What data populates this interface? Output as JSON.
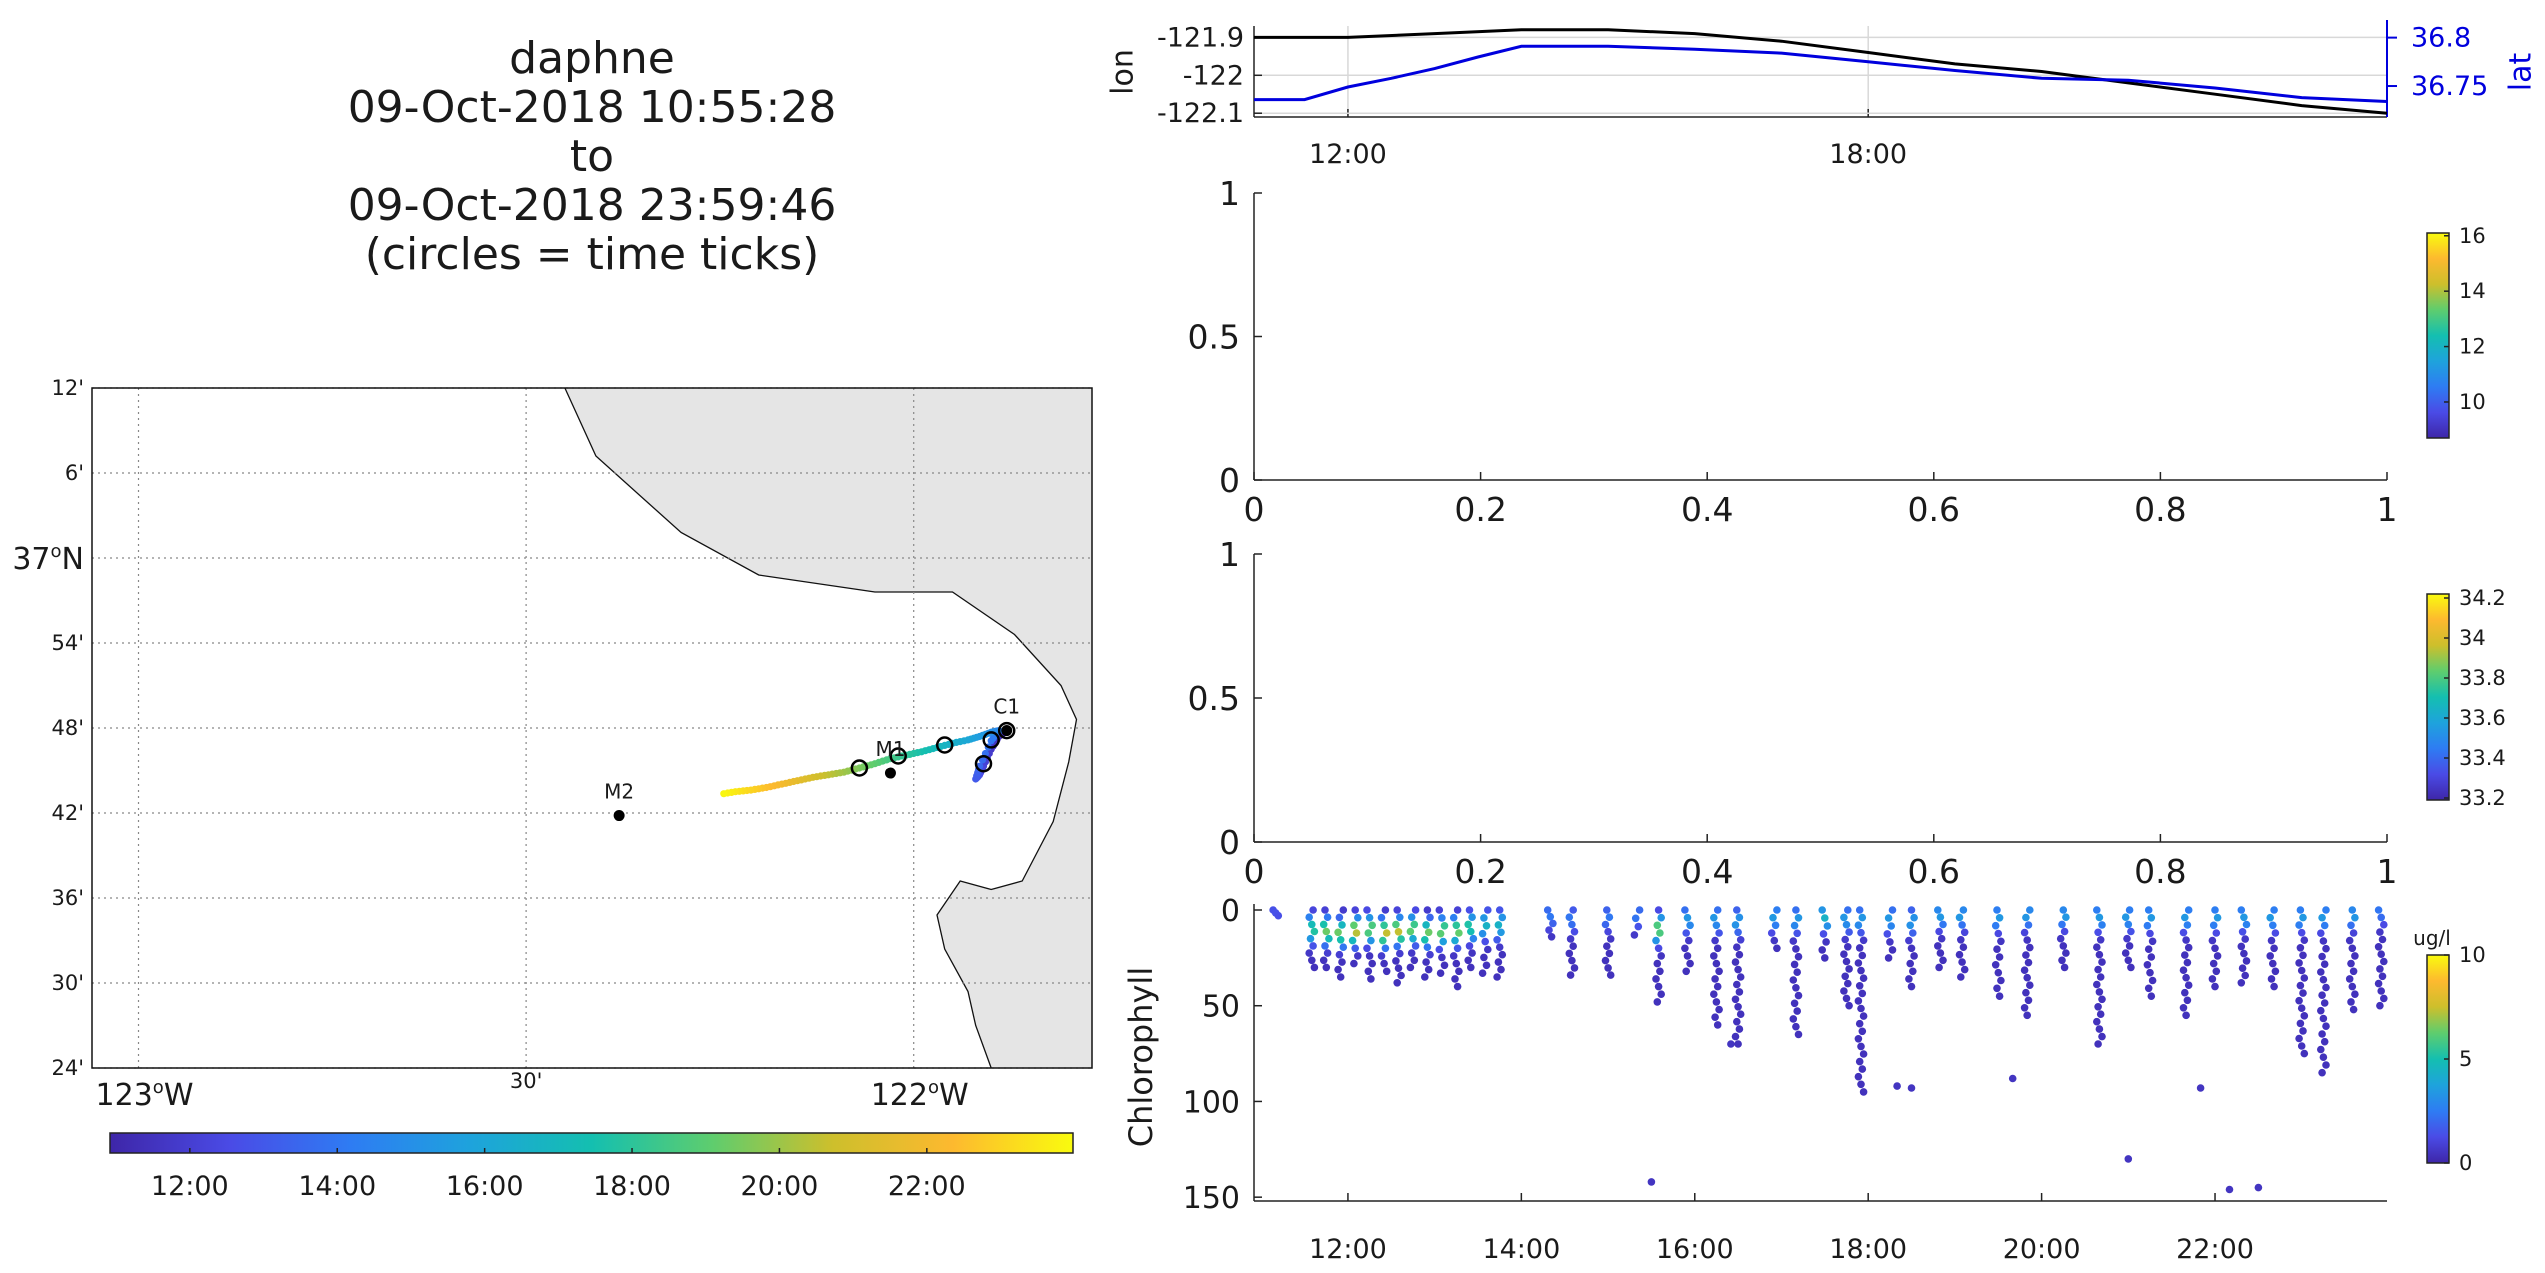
{
  "title": {
    "line1": "daphne",
    "line2": "09-Oct-2018 10:55:28",
    "line3": "to",
    "line4": "09-Oct-2018 23:59:46",
    "line5": "(circles = time ticks)"
  },
  "colors": {
    "lon_line": "#000000",
    "lat_line": "#0000dd",
    "land": "#e5e5e5",
    "colormap": [
      "#3e26a8",
      "#4a4be6",
      "#2e7cf3",
      "#1ea3dc",
      "#14bfb0",
      "#5ecd6e",
      "#cdbf2c",
      "#fdb92f",
      "#f9fb0e"
    ]
  },
  "chart_data": [
    {
      "type": "line",
      "name": "position-timeseries",
      "x_ticks": [
        "12:00",
        "18:00"
      ],
      "xlim": [
        "10:55",
        "23:59"
      ],
      "ylabel_left": "lon",
      "ylabel_right": "lat",
      "y_ticks_left": [
        "-121.9",
        "-122",
        "-122.1"
      ],
      "y_ticks_right": [
        "36.8",
        "36.75"
      ],
      "ylim_left": [
        -122.11,
        -121.87
      ],
      "ylim_right": [
        36.718,
        36.812
      ],
      "grid": true,
      "series": [
        {
          "name": "lon",
          "axis": "left",
          "x": [
            "10:55",
            "12:00",
            "13:00",
            "14:00",
            "15:00",
            "16:00",
            "17:00",
            "18:00",
            "19:00",
            "20:00",
            "21:00",
            "22:00",
            "23:00",
            "23:59"
          ],
          "values": [
            -121.9,
            -121.9,
            -121.89,
            -121.88,
            -121.88,
            -121.89,
            -121.91,
            -121.94,
            -121.97,
            -121.99,
            -122.02,
            -122.05,
            -122.08,
            -122.1
          ]
        },
        {
          "name": "lat",
          "axis": "right",
          "x": [
            "10:55",
            "11:30",
            "12:00",
            "12:30",
            "13:00",
            "13:30",
            "14:00",
            "15:00",
            "16:00",
            "17:00",
            "18:00",
            "19:00",
            "20:00",
            "21:00",
            "22:00",
            "23:00",
            "23:59"
          ],
          "values": [
            36.736,
            36.736,
            36.749,
            36.758,
            36.768,
            36.78,
            36.791,
            36.791,
            36.788,
            36.784,
            36.775,
            36.766,
            36.758,
            36.756,
            36.748,
            36.738,
            36.734
          ]
        }
      ]
    },
    {
      "type": "scatter",
      "name": "empty-panel-1",
      "x_ticks": [
        "0",
        "0.2",
        "0.4",
        "0.6",
        "0.8",
        "1"
      ],
      "y_ticks": [
        "0",
        "0.5",
        "1"
      ],
      "colorbar_ticks": [
        "10",
        "12",
        "14",
        "16"
      ],
      "colorbar_range": [
        8.7,
        16.1
      ],
      "points": []
    },
    {
      "type": "scatter",
      "name": "empty-panel-2",
      "x_ticks": [
        "0",
        "0.2",
        "0.4",
        "0.6",
        "0.8",
        "1"
      ],
      "y_ticks": [
        "0",
        "0.5",
        "1"
      ],
      "colorbar_ticks": [
        "33.2",
        "33.4",
        "33.6",
        "33.8",
        "34",
        "34.2"
      ],
      "colorbar_range": [
        33.19,
        34.22
      ],
      "points": []
    },
    {
      "type": "scatter",
      "name": "chlorophyll-section",
      "ylabel": "Chlorophyll",
      "x_ticks": [
        "12:00",
        "14:00",
        "16:00",
        "18:00",
        "20:00",
        "22:00"
      ],
      "y_ticks": [
        "0",
        "50",
        "100",
        "150"
      ],
      "xlim": [
        "10:55",
        "23:59"
      ],
      "ylim": [
        0,
        152
      ],
      "y_reversed": true,
      "colorbar_label": "ug/l",
      "colorbar_ticks": [
        "0",
        "5",
        "10"
      ],
      "colorbar_range": [
        0,
        10
      ],
      "profiles": [
        {
          "t": "11:10",
          "max_depth": 3,
          "peak_depth": 1,
          "peak": 1
        },
        {
          "t": "11:35",
          "max_depth": 30,
          "peak_depth": 10,
          "peak": 5
        },
        {
          "t": "11:45",
          "max_depth": 30,
          "peak_depth": 11,
          "peak": 6
        },
        {
          "t": "11:55",
          "max_depth": 35,
          "peak_depth": 12,
          "peak": 6
        },
        {
          "t": "12:05",
          "max_depth": 28,
          "peak_depth": 11,
          "peak": 7
        },
        {
          "t": "12:15",
          "max_depth": 36,
          "peak_depth": 10,
          "peak": 6
        },
        {
          "t": "12:25",
          "max_depth": 32,
          "peak_depth": 12,
          "peak": 7
        },
        {
          "t": "12:35",
          "max_depth": 38,
          "peak_depth": 11,
          "peak": 7
        },
        {
          "t": "12:45",
          "max_depth": 30,
          "peak_depth": 10,
          "peak": 6
        },
        {
          "t": "12:55",
          "max_depth": 35,
          "peak_depth": 12,
          "peak": 6
        },
        {
          "t": "13:05",
          "max_depth": 33,
          "peak_depth": 11,
          "peak": 6
        },
        {
          "t": "13:15",
          "max_depth": 40,
          "peak_depth": 11,
          "peak": 6
        },
        {
          "t": "13:25",
          "max_depth": 30,
          "peak_depth": 9,
          "peak": 5
        },
        {
          "t": "13:35",
          "max_depth": 33,
          "peak_depth": 8,
          "peak": 4
        },
        {
          "t": "13:45",
          "max_depth": 35,
          "peak_depth": 8,
          "peak": 4
        },
        {
          "t": "14:20",
          "max_depth": 14,
          "peak_depth": 3,
          "peak": 2
        },
        {
          "t": "14:35",
          "max_depth": 34,
          "peak_depth": 5,
          "peak": 2
        },
        {
          "t": "15:00",
          "max_depth": 34,
          "peak_depth": 4,
          "peak": 2
        },
        {
          "t": "15:20",
          "max_depth": 13,
          "peak_depth": 3,
          "peak": 2
        },
        {
          "t": "15:35",
          "max_depth": 48,
          "peak_depth": 10,
          "peak": 6
        },
        {
          "t": "15:55",
          "max_depth": 32,
          "peak_depth": 5,
          "peak": 3
        },
        {
          "t": "16:15",
          "max_depth": 60,
          "peak_depth": 5,
          "peak": 3
        },
        {
          "t": "16:30",
          "max_depth": 70,
          "peak_depth": 6,
          "peak": 3
        },
        {
          "t": "16:55",
          "max_depth": 20,
          "peak_depth": 4,
          "peak": 3
        },
        {
          "t": "17:10",
          "max_depth": 65,
          "peak_depth": 5,
          "peak": 3
        },
        {
          "t": "17:30",
          "max_depth": 25,
          "peak_depth": 4,
          "peak": 4
        },
        {
          "t": "17:45",
          "max_depth": 50,
          "peak_depth": 5,
          "peak": 3
        },
        {
          "t": "17:55",
          "max_depth": 95,
          "peak_depth": 5,
          "peak": 3
        },
        {
          "t": "18:15",
          "max_depth": 25,
          "peak_depth": 5,
          "peak": 3
        },
        {
          "t": "18:30",
          "max_depth": 40,
          "peak_depth": 6,
          "peak": 3
        },
        {
          "t": "18:50",
          "max_depth": 30,
          "peak_depth": 3,
          "peak": 3
        },
        {
          "t": "19:05",
          "max_depth": 35,
          "peak_depth": 3,
          "peak": 3
        },
        {
          "t": "19:30",
          "max_depth": 45,
          "peak_depth": 4,
          "peak": 3
        },
        {
          "t": "19:50",
          "max_depth": 55,
          "peak_depth": 3,
          "peak": 3
        },
        {
          "t": "20:15",
          "max_depth": 30,
          "peak_depth": 3,
          "peak": 3
        },
        {
          "t": "20:40",
          "max_depth": 70,
          "peak_depth": 4,
          "peak": 3
        },
        {
          "t": "21:00",
          "max_depth": 30,
          "peak_depth": 4,
          "peak": 3
        },
        {
          "t": "21:15",
          "max_depth": 45,
          "peak_depth": 4,
          "peak": 3
        },
        {
          "t": "21:40",
          "max_depth": 55,
          "peak_depth": 4,
          "peak": 3
        },
        {
          "t": "22:00",
          "max_depth": 40,
          "peak_depth": 4,
          "peak": 3
        },
        {
          "t": "22:20",
          "max_depth": 38,
          "peak_depth": 4,
          "peak": 3
        },
        {
          "t": "22:40",
          "max_depth": 40,
          "peak_depth": 4,
          "peak": 3
        },
        {
          "t": "23:00",
          "max_depth": 75,
          "peak_depth": 4,
          "peak": 3
        },
        {
          "t": "23:15",
          "max_depth": 85,
          "peak_depth": 4,
          "peak": 3
        },
        {
          "t": "23:35",
          "max_depth": 52,
          "peak_depth": 3,
          "peak": 3
        },
        {
          "t": "23:55",
          "max_depth": 50,
          "peak_depth": 1,
          "peak": 2
        }
      ],
      "isolated_points": [
        {
          "t": "15:30",
          "depth": 142,
          "value": 0.5
        },
        {
          "t": "16:25",
          "depth": 70,
          "value": 0.5
        },
        {
          "t": "18:20",
          "depth": 92,
          "value": 0.5
        },
        {
          "t": "18:30",
          "depth": 93,
          "value": 0.5
        },
        {
          "t": "19:40",
          "depth": 88,
          "value": 0.5
        },
        {
          "t": "21:00",
          "depth": 130,
          "value": 0.5
        },
        {
          "t": "21:50",
          "depth": 93,
          "value": 0.5
        },
        {
          "t": "22:10",
          "depth": 146,
          "value": 0.5
        },
        {
          "t": "22:30",
          "depth": 145,
          "value": 0.5
        }
      ]
    },
    {
      "type": "scatter",
      "name": "track-map",
      "lon_range": [
        -123.06,
        -121.77
      ],
      "lat_range": [
        36.4,
        37.2
      ],
      "lon_grid": [
        -123.0,
        -122.5,
        -122.0
      ],
      "lat_grid": [
        36.4,
        36.5,
        36.6,
        36.7,
        36.8,
        36.9,
        37.0,
        37.1,
        37.2
      ],
      "lat_ticks": [
        "24'",
        "30'",
        "36'",
        "42'",
        "48'",
        "54'",
        "37°N",
        "6'",
        "12'"
      ],
      "lon_tick_123": "123",
      "lon_tick_30": "30'",
      "lon_tick_122": "122",
      "deg_sup": "o",
      "deg_suffix": "W",
      "moorings": [
        {
          "name": "M2",
          "lon": -122.38,
          "lat": 36.697
        },
        {
          "name": "M1",
          "lon": -122.03,
          "lat": 36.747
        },
        {
          "name": "C1",
          "lon": -121.88,
          "lat": 36.797
        }
      ],
      "track": [
        {
          "lon": -121.88,
          "lat": 36.797,
          "t": "10:55"
        },
        {
          "lon": -121.89,
          "lat": 36.79,
          "t": "11:20"
        },
        {
          "lon": -121.9,
          "lat": 36.775,
          "t": "11:45"
        },
        {
          "lon": -121.91,
          "lat": 36.755,
          "t": "12:10"
        },
        {
          "lon": -121.915,
          "lat": 36.745,
          "t": "12:35"
        },
        {
          "lon": -121.92,
          "lat": 36.74,
          "t": "13:00"
        },
        {
          "lon": -121.915,
          "lat": 36.755,
          "t": "13:30"
        },
        {
          "lon": -121.9,
          "lat": 36.785,
          "t": "14:00"
        },
        {
          "lon": -121.89,
          "lat": 36.797,
          "t": "14:30"
        },
        {
          "lon": -121.9,
          "lat": 36.795,
          "t": "15:00"
        },
        {
          "lon": -121.915,
          "lat": 36.79,
          "t": "15:30"
        },
        {
          "lon": -121.93,
          "lat": 36.786,
          "t": "16:00"
        },
        {
          "lon": -121.95,
          "lat": 36.782,
          "t": "16:30"
        },
        {
          "lon": -121.97,
          "lat": 36.777,
          "t": "17:00"
        },
        {
          "lon": -121.99,
          "lat": 36.772,
          "t": "17:30"
        },
        {
          "lon": -122.01,
          "lat": 36.768,
          "t": "18:00"
        },
        {
          "lon": -122.03,
          "lat": 36.764,
          "t": "18:30"
        },
        {
          "lon": -122.05,
          "lat": 36.758,
          "t": "19:00"
        },
        {
          "lon": -122.07,
          "lat": 36.753,
          "t": "19:30"
        },
        {
          "lon": -122.09,
          "lat": 36.748,
          "t": "20:00"
        },
        {
          "lon": -122.11,
          "lat": 36.745,
          "t": "20:30"
        },
        {
          "lon": -122.13,
          "lat": 36.742,
          "t": "21:00"
        },
        {
          "lon": -122.15,
          "lat": 36.738,
          "t": "21:30"
        },
        {
          "lon": -122.17,
          "lat": 36.734,
          "t": "22:00"
        },
        {
          "lon": -122.19,
          "lat": 36.73,
          "t": "22:30"
        },
        {
          "lon": -122.21,
          "lat": 36.727,
          "t": "23:00"
        },
        {
          "lon": -122.23,
          "lat": 36.725,
          "t": "23:30"
        },
        {
          "lon": -122.25,
          "lat": 36.722,
          "t": "23:59"
        }
      ],
      "time_tick_circles": [
        {
          "lon": -121.88,
          "lat": 36.797
        },
        {
          "lon": -121.91,
          "lat": 36.758
        },
        {
          "lon": -121.9,
          "lat": 36.786
        },
        {
          "lon": -121.96,
          "lat": 36.78
        },
        {
          "lon": -122.02,
          "lat": 36.767
        },
        {
          "lon": -122.07,
          "lat": 36.753
        }
      ],
      "colorbar_ticks": [
        "12:00",
        "14:00",
        "16:00",
        "18:00",
        "20:00",
        "22:00"
      ],
      "colorbar_range": [
        "10:55",
        "23:59"
      ]
    }
  ]
}
